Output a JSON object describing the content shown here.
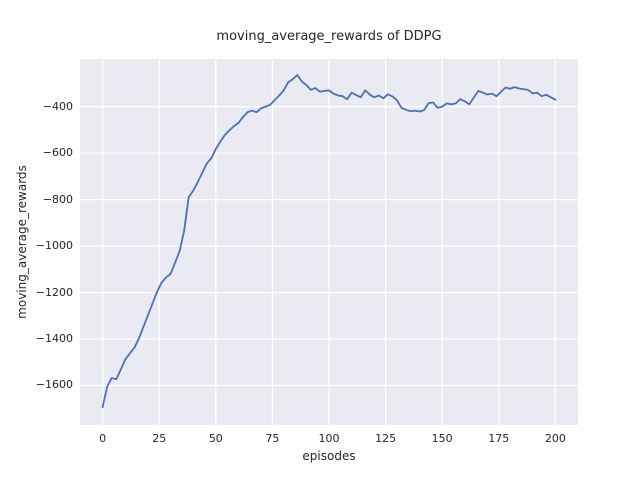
{
  "chart_data": {
    "type": "line",
    "title": "moving_average_rewards of DDPG",
    "xlabel": "episodes",
    "ylabel": "moving_average_rewards",
    "x_ticks": [
      0,
      25,
      50,
      75,
      100,
      125,
      150,
      175,
      200
    ],
    "y_ticks": [
      -400,
      -600,
      -800,
      -1000,
      -1200,
      -1400,
      -1600
    ],
    "xlim": [
      -10,
      210
    ],
    "ylim": [
      -1770,
      -195
    ],
    "grid": true,
    "legend": false,
    "style": "seaborn-darkgrid",
    "colors": {
      "line": "#4c72b0",
      "plot_background": "#eaeaf2",
      "grid": "#ffffff",
      "text": "#262626",
      "figure_background": "#ffffff"
    },
    "series": [
      {
        "name": "moving_average_rewards",
        "x_start": 0,
        "x_step": 2,
        "values": [
          -1693,
          -1605,
          -1568,
          -1573,
          -1532,
          -1488,
          -1462,
          -1438,
          -1398,
          -1348,
          -1298,
          -1248,
          -1198,
          -1158,
          -1135,
          -1120,
          -1072,
          -1022,
          -935,
          -790,
          -762,
          -725,
          -685,
          -645,
          -622,
          -582,
          -550,
          -522,
          -502,
          -484,
          -470,
          -445,
          -424,
          -417,
          -424,
          -407,
          -400,
          -392,
          -372,
          -352,
          -330,
          -295,
          -282,
          -264,
          -292,
          -307,
          -328,
          -320,
          -336,
          -332,
          -330,
          -344,
          -352,
          -355,
          -368,
          -340,
          -350,
          -360,
          -330,
          -348,
          -360,
          -352,
          -364,
          -347,
          -356,
          -372,
          -405,
          -413,
          -420,
          -417,
          -421,
          -415,
          -385,
          -382,
          -405,
          -400,
          -386,
          -390,
          -386,
          -368,
          -377,
          -390,
          -360,
          -332,
          -340,
          -348,
          -344,
          -355,
          -336,
          -318,
          -323,
          -316,
          -322,
          -325,
          -328,
          -343,
          -340,
          -355,
          -349,
          -360,
          -370
        ]
      }
    ]
  }
}
